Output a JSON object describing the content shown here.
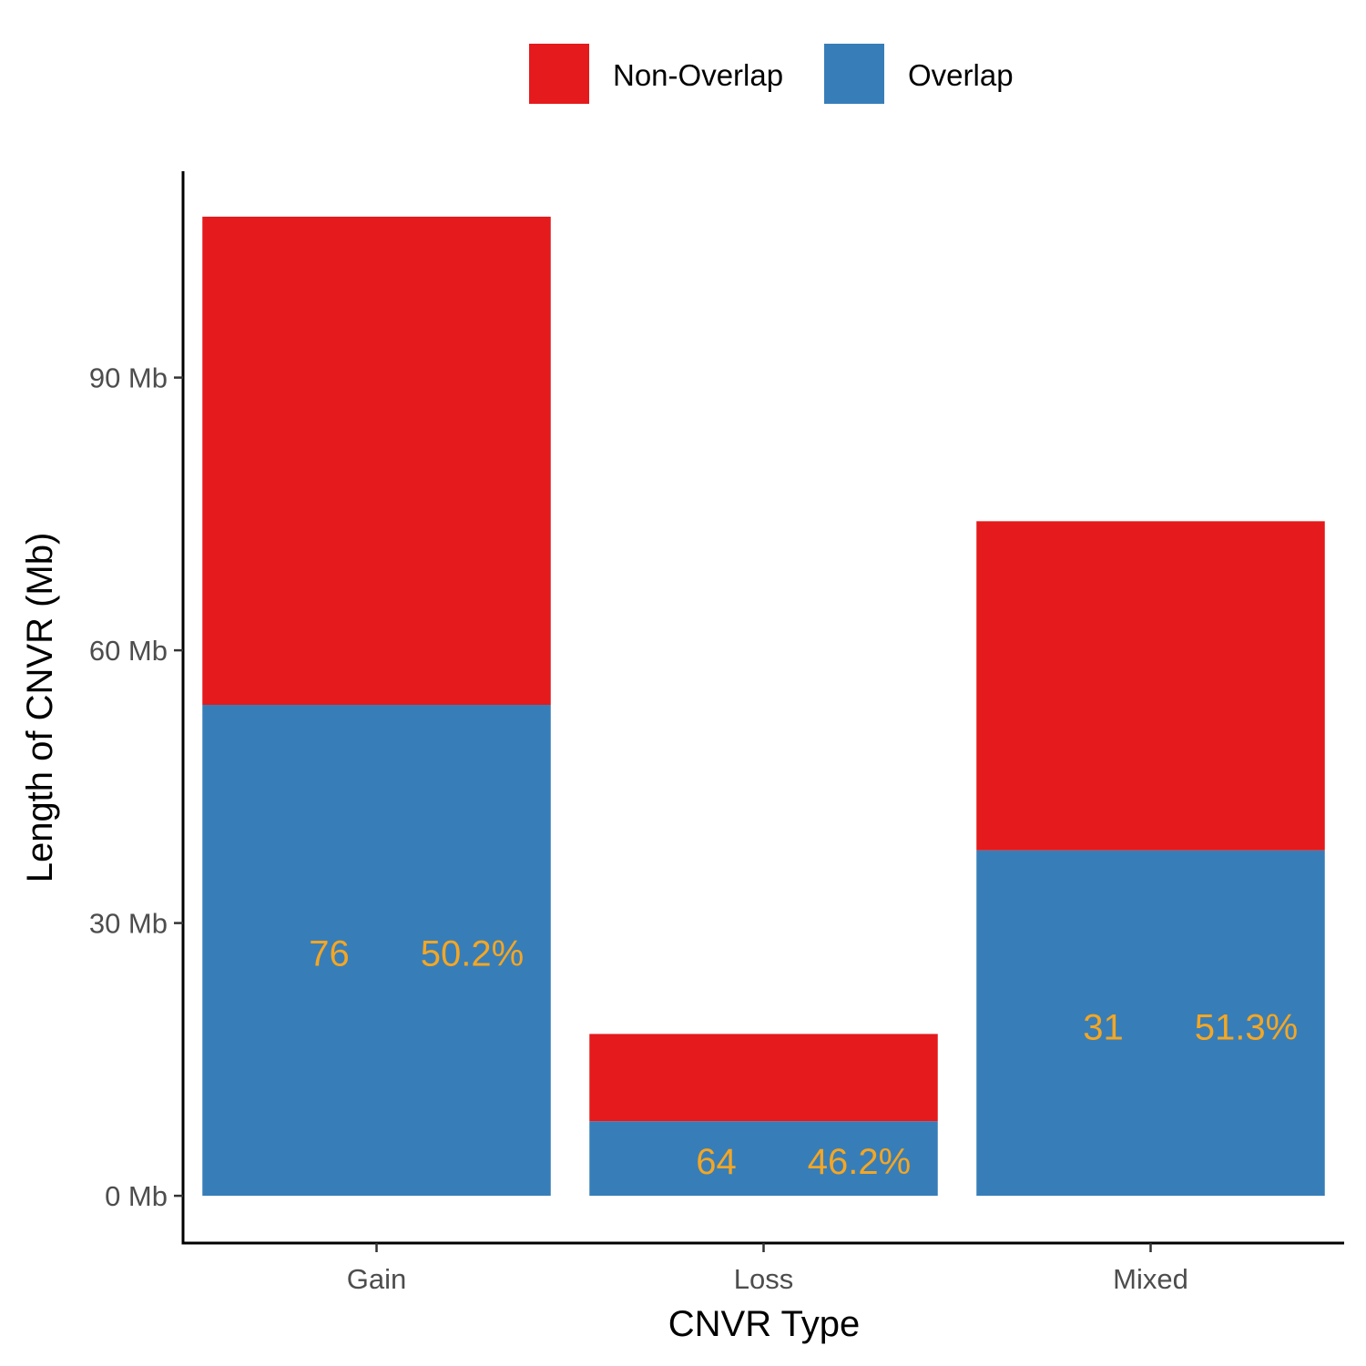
{
  "chart_data": {
    "type": "bar",
    "stacked": true,
    "xlabel": "CNVR Type",
    "ylabel": "Length of CNVR (Mb)",
    "categories": [
      "Gain",
      "Loss",
      "Mixed"
    ],
    "series": [
      {
        "name": "Overlap",
        "color": "#377EB8",
        "values": [
          54.0,
          8.2,
          38.0
        ]
      },
      {
        "name": "Non-Overlap",
        "color": "#E41A1C",
        "values": [
          53.7,
          9.6,
          36.2
        ]
      }
    ],
    "legend": {
      "position": "top",
      "order": [
        "Non-Overlap",
        "Overlap"
      ]
    },
    "ylim": [
      -5.2,
      112.7
    ],
    "yticks": [
      0,
      30,
      60,
      90
    ],
    "ytick_labels": [
      "0 Mb",
      "30 Mb",
      "60 Mb",
      "90 Mb"
    ],
    "annotations": [
      {
        "category": "Gain",
        "y": 26.7,
        "count": "76",
        "percent": "50.2%"
      },
      {
        "category": "Loss",
        "y": 3.8,
        "count": "64",
        "percent": "46.2%"
      },
      {
        "category": "Mixed",
        "y": 18.6,
        "count": "31",
        "percent": "51.3%"
      }
    ],
    "annotation_color": "#F5A623",
    "grid": false
  }
}
